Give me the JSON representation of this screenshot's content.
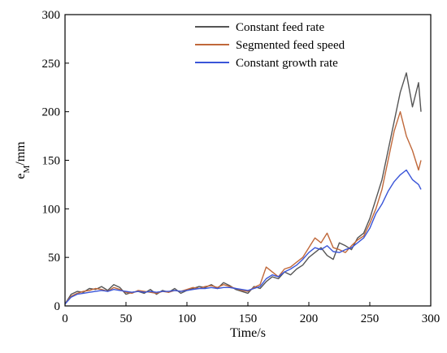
{
  "chart_data": {
    "type": "line",
    "title": "",
    "xlabel": "Time/s",
    "ylabel": "e",
    "ylabel_subscript": "M",
    "ylabel_suffix": "/mm",
    "xlim": [
      0,
      300
    ],
    "ylim": [
      0,
      300
    ],
    "xticks": [
      "0",
      "50",
      "100",
      "150",
      "200",
      "250",
      "300"
    ],
    "yticks": [
      "0",
      "50",
      "100",
      "150",
      "200",
      "250",
      "300"
    ],
    "grid": false,
    "legend_position": "top-center",
    "x": [
      0,
      5,
      10,
      15,
      20,
      25,
      30,
      35,
      40,
      45,
      50,
      55,
      60,
      65,
      70,
      75,
      80,
      85,
      90,
      95,
      100,
      105,
      110,
      115,
      120,
      125,
      130,
      135,
      140,
      145,
      150,
      155,
      160,
      165,
      170,
      175,
      180,
      185,
      190,
      195,
      200,
      205,
      210,
      215,
      220,
      225,
      230,
      235,
      240,
      245,
      250,
      255,
      260,
      265,
      270,
      275,
      280,
      285,
      290,
      292
    ],
    "series": [
      {
        "name": "Constant feed rate",
        "color": "#555555",
        "values": [
          2,
          12,
          15,
          14,
          18,
          17,
          20,
          16,
          22,
          19,
          12,
          14,
          15,
          13,
          17,
          12,
          16,
          14,
          18,
          13,
          16,
          18,
          20,
          19,
          22,
          18,
          24,
          21,
          17,
          15,
          13,
          20,
          18,
          25,
          30,
          28,
          35,
          32,
          38,
          42,
          50,
          55,
          60,
          52,
          48,
          65,
          62,
          58,
          70,
          75,
          90,
          110,
          130,
          160,
          190,
          220,
          240,
          205,
          230,
          200
        ]
      },
      {
        "name": "Segmented feed speed",
        "color": "#c0683a",
        "values": [
          2,
          10,
          13,
          15,
          16,
          18,
          17,
          15,
          19,
          17,
          14,
          13,
          16,
          15,
          14,
          13,
          15,
          14,
          16,
          15,
          17,
          19,
          18,
          20,
          21,
          19,
          22,
          20,
          18,
          16,
          15,
          19,
          22,
          40,
          35,
          30,
          38,
          40,
          45,
          50,
          60,
          70,
          65,
          75,
          60,
          58,
          55,
          62,
          68,
          72,
          85,
          100,
          120,
          150,
          180,
          200,
          175,
          160,
          140,
          150
        ]
      },
      {
        "name": "Constant growth rate",
        "color": "#3a55d8",
        "values": [
          2,
          9,
          12,
          13,
          14,
          15,
          16,
          15,
          17,
          16,
          15,
          14,
          15,
          14,
          15,
          14,
          15,
          15,
          16,
          15,
          16,
          17,
          18,
          18,
          19,
          18,
          19,
          19,
          18,
          17,
          16,
          18,
          20,
          28,
          32,
          30,
          35,
          38,
          42,
          48,
          55,
          60,
          58,
          62,
          56,
          55,
          58,
          60,
          65,
          70,
          80,
          95,
          105,
          118,
          128,
          135,
          140,
          130,
          125,
          120
        ]
      }
    ]
  }
}
